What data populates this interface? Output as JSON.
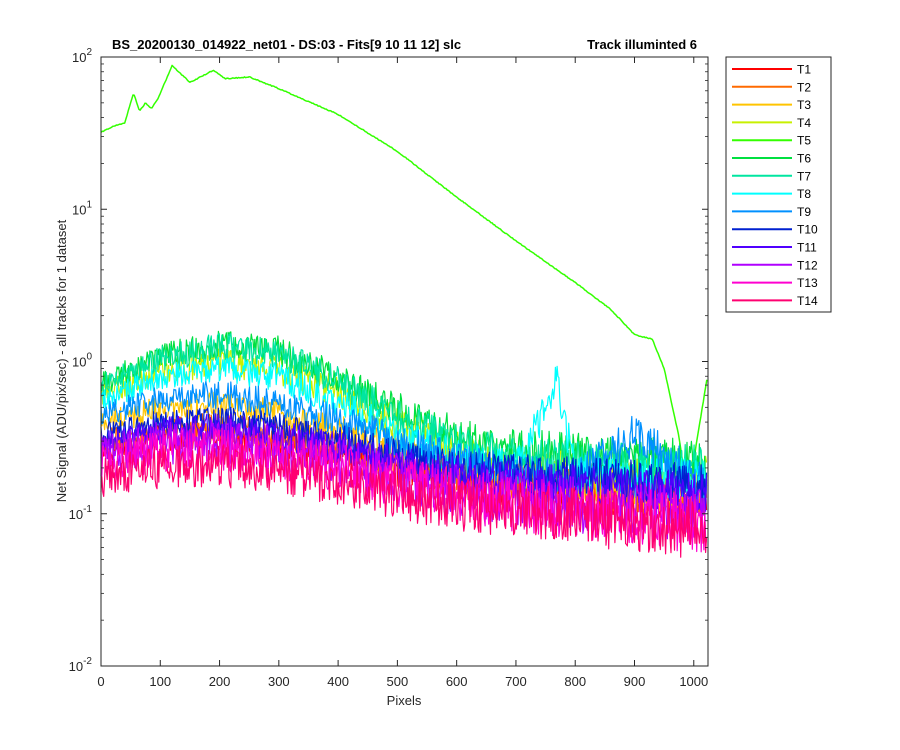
{
  "chart_data": {
    "type": "line",
    "title_left": "BS_20200130_014922_net01 - DS:03 - Fits[9  10  11  12]   slc",
    "title_right": "Track illuminted 6",
    "xlabel": "Pixels",
    "ylabel": "Net Signal (ADU/pix/sec) - all tracks for 1 dataset",
    "xlim": [
      0,
      1024
    ],
    "ylim": [
      0.01,
      100
    ],
    "yscale": "log",
    "grid": false,
    "legend_position": "outside-right",
    "x_ticks": [
      0,
      100,
      200,
      300,
      400,
      500,
      600,
      700,
      800,
      900,
      1000
    ],
    "x_tick_labels": [
      "0",
      "100",
      "200",
      "300",
      "400",
      "500",
      "600",
      "700",
      "800",
      "900",
      "1000"
    ],
    "y_ticks": [
      0.01,
      0.1,
      1,
      10,
      100
    ],
    "y_tick_labels": [
      {
        "base": "10",
        "exp": "-2"
      },
      {
        "base": "10",
        "exp": "-1"
      },
      {
        "base": "10",
        "exp": "0"
      },
      {
        "base": "10",
        "exp": "1"
      },
      {
        "base": "10",
        "exp": "2"
      }
    ],
    "series": [
      {
        "name": "T1",
        "color": "#ff0000",
        "points": [
          [
            0,
            0.26
          ],
          [
            100,
            0.32
          ],
          [
            200,
            0.33
          ],
          [
            300,
            0.3
          ],
          [
            400,
            0.25
          ],
          [
            500,
            0.2
          ],
          [
            600,
            0.17
          ],
          [
            700,
            0.15
          ],
          [
            800,
            0.14
          ],
          [
            900,
            0.13
          ],
          [
            1020,
            0.12
          ]
        ]
      },
      {
        "name": "T2",
        "color": "#ff6a00",
        "points": [
          [
            0,
            0.3
          ],
          [
            100,
            0.37
          ],
          [
            200,
            0.38
          ],
          [
            300,
            0.34
          ],
          [
            400,
            0.28
          ],
          [
            500,
            0.22
          ],
          [
            600,
            0.18
          ],
          [
            700,
            0.16
          ],
          [
            800,
            0.15
          ],
          [
            900,
            0.14
          ],
          [
            1020,
            0.13
          ]
        ]
      },
      {
        "name": "T3",
        "color": "#ffc400",
        "points": [
          [
            0,
            0.4
          ],
          [
            100,
            0.5
          ],
          [
            200,
            0.52
          ],
          [
            300,
            0.46
          ],
          [
            400,
            0.36
          ],
          [
            500,
            0.27
          ],
          [
            600,
            0.21
          ],
          [
            700,
            0.18
          ],
          [
            800,
            0.16
          ],
          [
            900,
            0.15
          ],
          [
            1020,
            0.14
          ]
        ]
      },
      {
        "name": "T4",
        "color": "#c8f000",
        "points": [
          [
            0,
            0.62
          ],
          [
            100,
            0.88
          ],
          [
            200,
            1.0
          ],
          [
            300,
            0.9
          ],
          [
            400,
            0.65
          ],
          [
            500,
            0.4
          ],
          [
            600,
            0.27
          ],
          [
            700,
            0.22
          ],
          [
            800,
            0.2
          ],
          [
            900,
            0.19
          ],
          [
            1020,
            0.18
          ]
        ]
      },
      {
        "name": "T5",
        "color": "#33ff00",
        "points": [
          [
            0,
            32
          ],
          [
            20,
            35
          ],
          [
            40,
            37
          ],
          [
            55,
            58
          ],
          [
            65,
            44
          ],
          [
            75,
            50
          ],
          [
            85,
            46
          ],
          [
            95,
            52
          ],
          [
            120,
            88
          ],
          [
            150,
            68
          ],
          [
            190,
            82
          ],
          [
            210,
            72
          ],
          [
            250,
            74
          ],
          [
            300,
            62
          ],
          [
            400,
            42
          ],
          [
            500,
            24
          ],
          [
            600,
            12
          ],
          [
            700,
            6.2
          ],
          [
            800,
            3.3
          ],
          [
            860,
            2.2
          ],
          [
            900,
            1.5
          ],
          [
            930,
            1.4
          ],
          [
            950,
            0.9
          ],
          [
            975,
            0.32
          ],
          [
            990,
            0.13
          ],
          [
            1024,
            0.85
          ]
        ]
      },
      {
        "name": "T6",
        "color": "#00e040",
        "points": [
          [
            0,
            0.72
          ],
          [
            100,
            1.1
          ],
          [
            200,
            1.32
          ],
          [
            300,
            1.2
          ],
          [
            400,
            0.8
          ],
          [
            500,
            0.5
          ],
          [
            600,
            0.34
          ],
          [
            700,
            0.28
          ],
          [
            800,
            0.26
          ],
          [
            900,
            0.24
          ],
          [
            1020,
            0.23
          ]
        ]
      },
      {
        "name": "T7",
        "color": "#00e6a0",
        "points": [
          [
            0,
            0.7
          ],
          [
            100,
            1.05
          ],
          [
            200,
            1.28
          ],
          [
            300,
            1.15
          ],
          [
            400,
            0.75
          ],
          [
            500,
            0.45
          ],
          [
            600,
            0.3
          ],
          [
            700,
            0.25
          ],
          [
            800,
            0.23
          ],
          [
            900,
            0.22
          ],
          [
            1020,
            0.21
          ]
        ]
      },
      {
        "name": "T8",
        "color": "#00ffff",
        "points": [
          [
            0,
            0.55
          ],
          [
            100,
            0.8
          ],
          [
            200,
            0.9
          ],
          [
            300,
            0.8
          ],
          [
            400,
            0.55
          ],
          [
            500,
            0.34
          ],
          [
            600,
            0.24
          ],
          [
            700,
            0.2
          ],
          [
            770,
            0.78
          ],
          [
            800,
            0.19
          ],
          [
            900,
            0.18
          ],
          [
            1020,
            0.17
          ]
        ]
      },
      {
        "name": "T9",
        "color": "#0090ff",
        "points": [
          [
            0,
            0.46
          ],
          [
            100,
            0.58
          ],
          [
            200,
            0.62
          ],
          [
            300,
            0.55
          ],
          [
            400,
            0.42
          ],
          [
            500,
            0.31
          ],
          [
            600,
            0.23
          ],
          [
            700,
            0.19
          ],
          [
            800,
            0.17
          ],
          [
            900,
            0.34
          ],
          [
            1020,
            0.16
          ]
        ]
      },
      {
        "name": "T10",
        "color": "#0020d0",
        "points": [
          [
            0,
            0.33
          ],
          [
            100,
            0.4
          ],
          [
            200,
            0.42
          ],
          [
            300,
            0.38
          ],
          [
            400,
            0.31
          ],
          [
            500,
            0.25
          ],
          [
            600,
            0.21
          ],
          [
            700,
            0.19
          ],
          [
            800,
            0.18
          ],
          [
            900,
            0.17
          ],
          [
            1020,
            0.16
          ]
        ]
      },
      {
        "name": "T11",
        "color": "#5000ff",
        "points": [
          [
            0,
            0.3
          ],
          [
            100,
            0.36
          ],
          [
            200,
            0.38
          ],
          [
            300,
            0.34
          ],
          [
            400,
            0.28
          ],
          [
            500,
            0.22
          ],
          [
            600,
            0.19
          ],
          [
            700,
            0.17
          ],
          [
            800,
            0.16
          ],
          [
            900,
            0.15
          ],
          [
            1020,
            0.14
          ]
        ]
      },
      {
        "name": "T12",
        "color": "#b000ff",
        "points": [
          [
            0,
            0.25
          ],
          [
            100,
            0.3
          ],
          [
            200,
            0.31
          ],
          [
            300,
            0.28
          ],
          [
            400,
            0.23
          ],
          [
            500,
            0.18
          ],
          [
            600,
            0.15
          ],
          [
            700,
            0.13
          ],
          [
            800,
            0.12
          ],
          [
            900,
            0.11
          ],
          [
            1020,
            0.1
          ]
        ]
      },
      {
        "name": "T13",
        "color": "#ff00d0",
        "points": [
          [
            0,
            0.22
          ],
          [
            100,
            0.27
          ],
          [
            200,
            0.28
          ],
          [
            300,
            0.25
          ],
          [
            400,
            0.21
          ],
          [
            500,
            0.17
          ],
          [
            600,
            0.14
          ],
          [
            700,
            0.12
          ],
          [
            800,
            0.11
          ],
          [
            900,
            0.1
          ],
          [
            1020,
            0.09
          ]
        ]
      },
      {
        "name": "T14",
        "color": "#ff0070",
        "points": [
          [
            0,
            0.18
          ],
          [
            100,
            0.21
          ],
          [
            200,
            0.22
          ],
          [
            300,
            0.2
          ],
          [
            400,
            0.17
          ],
          [
            500,
            0.14
          ],
          [
            600,
            0.12
          ],
          [
            700,
            0.11
          ],
          [
            800,
            0.1
          ],
          [
            900,
            0.09
          ],
          [
            1020,
            0.08
          ]
        ]
      }
    ]
  }
}
